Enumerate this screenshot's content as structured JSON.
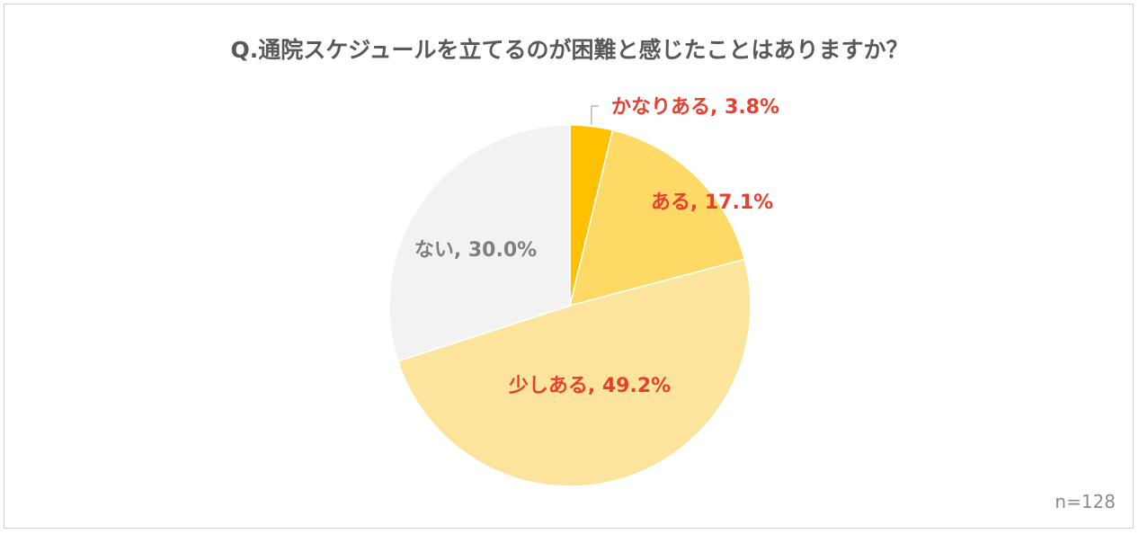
{
  "chart_data": {
    "type": "pie",
    "title": "Q.通院スケジュールを立てるのが困難と感じたことはありますか？",
    "note": "n=128",
    "slices": [
      {
        "label": "かなりある",
        "value": 3.8,
        "display": "かなりある, 3.8%",
        "color": "#ffc000",
        "label_color": "#e8402e"
      },
      {
        "label": "ある",
        "value": 17.1,
        "display": "ある, 17.1%",
        "color": "#ffd966",
        "label_color": "#e8402e"
      },
      {
        "label": "少しある",
        "value": 49.2,
        "display": "少しある, 49.2%",
        "color": "#fde49c",
        "label_color": "#e8402e"
      },
      {
        "label": "ない",
        "value": 30.0,
        "display": "ない, 30.0%",
        "color": "#f2f2f2",
        "label_color": "#7f7f7f"
      }
    ],
    "start_angle": "12 o'clock",
    "direction": "clockwise",
    "legend": "none",
    "slice_border_color": "#ffffff",
    "leader_line_color": "#a6a6a6"
  }
}
